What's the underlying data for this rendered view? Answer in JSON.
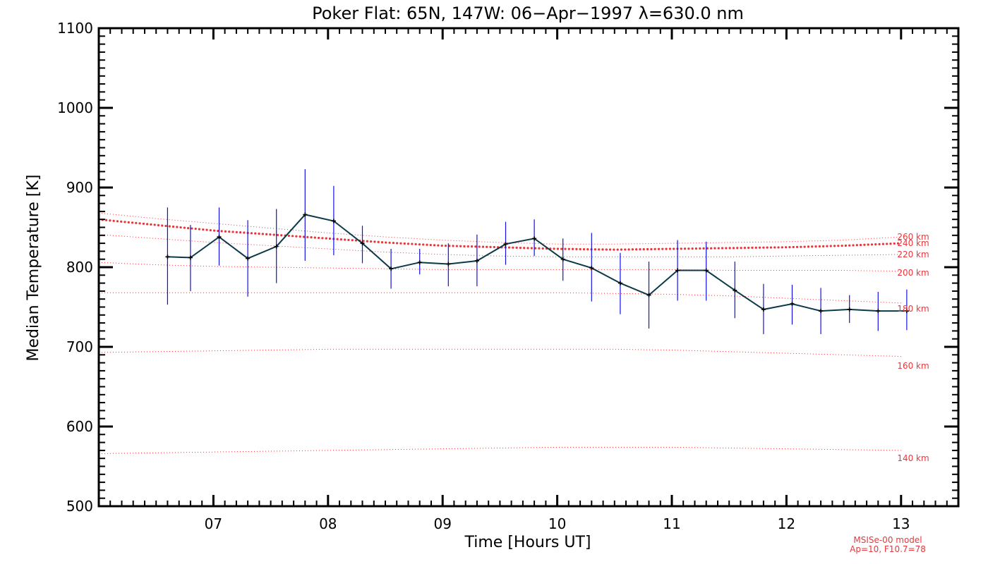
{
  "chart_data": {
    "type": "line",
    "title": "Poker Flat: 65N, 147W: 06−Apr−1997 λ=630.0 nm",
    "xlabel": "Time [Hours UT]",
    "ylabel": "Median Temperature [K]",
    "xlim": [
      6.0,
      13.5
    ],
    "ylim": [
      500,
      1100
    ],
    "x_ticks": [
      7,
      8,
      9,
      10,
      11,
      12,
      13
    ],
    "x_tick_labels": [
      "07",
      "08",
      "09",
      "10",
      "11",
      "12",
      "13"
    ],
    "y_ticks": [
      500,
      600,
      700,
      800,
      900,
      1000,
      1100
    ],
    "y_tick_labels": [
      "500",
      "600",
      "700",
      "800",
      "900",
      "1000",
      "1100"
    ],
    "series": [
      {
        "name": "Median Temperature",
        "color": "#0a3a4a",
        "errorbar_color": "#1010e0",
        "x": [
          6.6,
          6.8,
          7.05,
          7.3,
          7.55,
          7.8,
          8.05,
          8.3,
          8.55,
          8.8,
          9.05,
          9.3,
          9.55,
          9.8,
          10.05,
          10.3,
          10.55,
          10.8,
          11.05,
          11.3,
          11.55,
          11.8,
          12.05,
          12.3,
          12.55,
          12.8,
          13.05
        ],
        "values": [
          813,
          812,
          838,
          811,
          826,
          866,
          858,
          830,
          798,
          806,
          804,
          808,
          829,
          836,
          810,
          799,
          780,
          765,
          796,
          796,
          771,
          747,
          754,
          745,
          747,
          745,
          745
        ],
        "err_low": [
          753,
          770,
          802,
          763,
          780,
          808,
          815,
          805,
          773,
          791,
          776,
          776,
          803,
          814,
          783,
          757,
          741,
          723,
          758,
          758,
          736,
          716,
          728,
          716,
          730,
          720,
          721
        ],
        "err_high": [
          875,
          853,
          875,
          859,
          873,
          923,
          902,
          852,
          823,
          823,
          830,
          841,
          857,
          860,
          836,
          843,
          818,
          807,
          834,
          832,
          807,
          779,
          778,
          774,
          765,
          769,
          772
        ]
      }
    ],
    "model": {
      "name": "MSISe-00 model",
      "params": "Ap=10, F10.7=78",
      "color": "#e8363a",
      "x": [
        6.0,
        6.5,
        7.0,
        7.5,
        8.0,
        8.5,
        9.0,
        9.5,
        10.0,
        10.5,
        11.0,
        11.5,
        12.0,
        12.5,
        13.0
      ],
      "curves": [
        {
          "label": "260 km",
          "values": [
            868,
            861,
            855,
            849,
            843,
            838,
            834,
            831,
            829,
            829,
            830,
            831,
            832,
            834,
            838
          ]
        },
        {
          "label": "240 km",
          "values": [
            860,
            853,
            846,
            841,
            836,
            831,
            827,
            825,
            823,
            822,
            823,
            824,
            825,
            827,
            830
          ],
          "highlight": true
        },
        {
          "label": "220 km",
          "values": [
            841,
            836,
            831,
            827,
            823,
            819,
            816,
            814,
            813,
            813,
            813,
            813,
            814,
            815,
            816
          ]
        },
        {
          "label": "200 km",
          "values": [
            806,
            803,
            801,
            800,
            799,
            798,
            797,
            797,
            797,
            797,
            797,
            796,
            796,
            796,
            795
          ]
        },
        {
          "label": "180 km",
          "values": [
            768,
            768,
            768,
            768,
            768,
            768,
            768,
            768,
            768,
            767,
            766,
            764,
            761,
            758,
            755
          ]
        },
        {
          "label": "160 km",
          "values": [
            693,
            694,
            695,
            696,
            697,
            697,
            697,
            697,
            697,
            697,
            696,
            694,
            692,
            690,
            688
          ]
        },
        {
          "label": "140 km",
          "values": [
            566,
            567,
            568,
            569,
            570,
            571,
            572,
            573,
            574,
            574,
            574,
            573,
            572,
            571,
            570
          ]
        }
      ],
      "label_values": [
        838,
        830,
        816,
        793,
        748,
        676,
        560
      ]
    }
  }
}
